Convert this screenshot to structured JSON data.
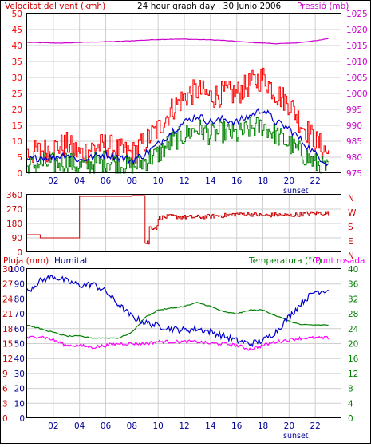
{
  "header": {
    "wind_label": "Velocitat del vent (kmh)",
    "title": "24 hour graph day : 30 Junio 2006",
    "pressure_label": "Pressió (mb)"
  },
  "colors": {
    "frame": "#000000",
    "grid": "#cfcfcf",
    "wind_gust": "#ff0000",
    "wind_avg": "#0000cc",
    "wind_green": "#008000",
    "pressure": "#cc00cc",
    "direction": "#cc0000",
    "humidity": "#0000cc",
    "temperature": "#008000",
    "dewpoint": "#ff00ff",
    "rain": "#cc0000",
    "rain_axis": "#cc0000",
    "humidity_axis": "#000099",
    "temp_axis": "#008000"
  },
  "chart_data": [
    {
      "type": "line",
      "name": "wind-pressure",
      "x_ticks": [
        "02",
        "04",
        "06",
        "08",
        "10",
        "12",
        "14",
        "16",
        "18",
        "20",
        "22"
      ],
      "x_annotation": "sunset",
      "y_left_ticks": [
        0,
        5,
        10,
        15,
        20,
        25,
        30,
        35,
        40,
        45,
        50
      ],
      "y_left_lim": [
        0,
        50
      ],
      "y_right_ticks": [
        975,
        980,
        985,
        990,
        995,
        1000,
        1005,
        1010,
        1015,
        1020,
        1025
      ],
      "y_right_lim": [
        975,
        1025
      ],
      "pressure_hourly": [
        1016.0,
        1015.9,
        1015.8,
        1015.8,
        1016.0,
        1016.1,
        1016.2,
        1016.3,
        1016.5,
        1016.7,
        1016.9,
        1017.0,
        1017.0,
        1016.9,
        1016.8,
        1016.6,
        1016.3,
        1016.0,
        1015.8,
        1015.6,
        1015.7,
        1016.0,
        1016.5,
        1017.2
      ],
      "wind_gust_hourly": [
        6,
        7,
        8,
        9,
        6,
        8,
        9,
        7,
        6,
        10,
        14,
        20,
        24,
        26,
        24,
        25,
        25,
        28,
        30,
        25,
        22,
        15,
        10,
        6
      ],
      "wind_avg_hourly": [
        4,
        5,
        5,
        6,
        4,
        5,
        6,
        5,
        4,
        6,
        9,
        13,
        16,
        18,
        16,
        17,
        16,
        18,
        20,
        16,
        14,
        10,
        6,
        3
      ],
      "wind_green_hourly": [
        2,
        3,
        3,
        4,
        2,
        3,
        4,
        3,
        2,
        4,
        6,
        10,
        12,
        14,
        12,
        13,
        12,
        14,
        15,
        12,
        9,
        6,
        3,
        1
      ]
    },
    {
      "type": "line",
      "name": "wind-direction",
      "y_left_ticks": [
        0,
        90,
        180,
        270,
        360
      ],
      "y_left_lim": [
        0,
        360
      ],
      "y_right_labels": [
        "N",
        "W",
        "S",
        "E",
        "N"
      ],
      "direction_hourly": [
        110,
        90,
        90,
        90,
        350,
        350,
        350,
        350,
        355,
        360,
        215,
        225,
        220,
        220,
        225,
        230,
        240,
        240,
        230,
        235,
        230,
        240,
        245,
        245
      ]
    },
    {
      "type": "line",
      "name": "humidity-temperature",
      "x_ticks": [
        "02",
        "04",
        "06",
        "08",
        "10",
        "12",
        "14",
        "16",
        "18",
        "20",
        "22"
      ],
      "x_annotation": "sunset",
      "rain_label": "Pluja (mm)",
      "humidity_label": "Humitat",
      "temp_label": "Temperatura (°C)",
      "dewpoint_label": "Punt rosada",
      "rain_ticks": [
        0,
        3,
        6,
        9,
        12,
        15,
        18,
        21,
        24,
        27,
        30
      ],
      "rain_lim": [
        0,
        30
      ],
      "humidity_ticks": [
        0,
        10,
        20,
        30,
        40,
        50,
        60,
        70,
        80,
        90,
        100
      ],
      "humidity_lim": [
        0,
        100
      ],
      "temp_ticks": [
        0,
        4,
        8,
        12,
        16,
        20,
        24,
        28,
        32,
        36,
        40
      ],
      "temp_lim": [
        0,
        40
      ],
      "humidity_hourly": [
        85,
        92,
        95,
        92,
        89,
        90,
        85,
        76,
        68,
        64,
        62,
        60,
        59,
        60,
        58,
        55,
        52,
        50,
        52,
        58,
        68,
        78,
        85,
        86
      ],
      "temperature_hourly": [
        25,
        24,
        23,
        22,
        22,
        21.5,
        21.5,
        21.5,
        23,
        27,
        29,
        29.5,
        30,
        31,
        30,
        28.5,
        28,
        29,
        29,
        27.5,
        26,
        25,
        25,
        25
      ],
      "dewpoint_hourly": [
        21.5,
        22,
        21,
        19.5,
        19.5,
        19,
        19.5,
        20,
        20,
        20,
        20.5,
        20.5,
        20.5,
        20.5,
        20,
        20,
        19.5,
        18.5,
        19.5,
        20.5,
        21,
        21.5,
        21.5,
        21.5
      ],
      "rain_hourly": [
        0,
        0,
        0,
        0,
        0,
        0,
        0,
        0,
        0,
        0,
        0,
        0,
        0,
        0,
        0,
        0,
        0,
        0,
        0,
        0,
        0,
        0,
        0,
        0
      ]
    }
  ]
}
